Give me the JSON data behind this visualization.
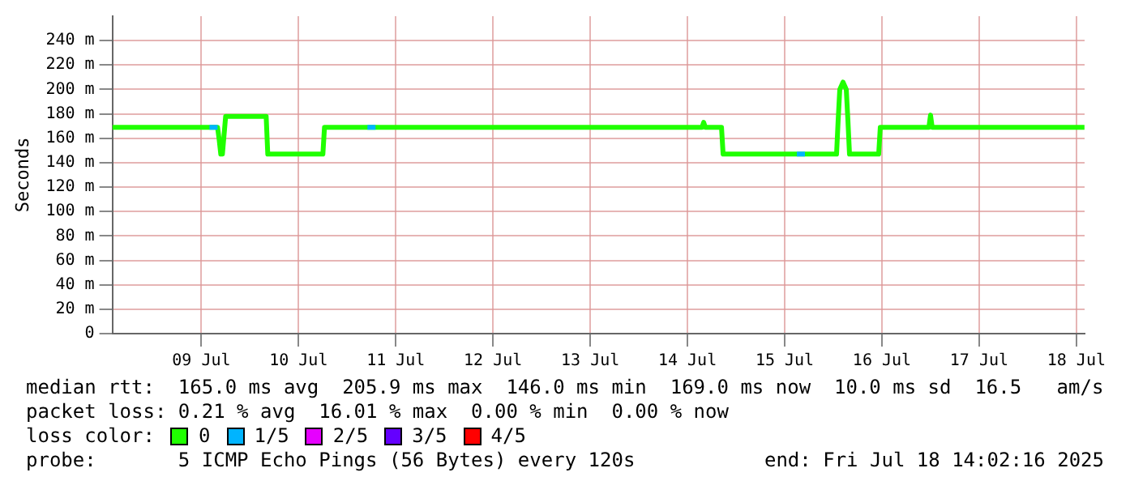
{
  "chart_data": {
    "type": "line",
    "ylabel": "Seconds",
    "xlim": [
      "2025-07-08T14:02",
      "2025-07-18T14:02"
    ],
    "xticks": [
      {
        "value": "2025-07-09T12:00",
        "label": "09 Jul"
      },
      {
        "value": "2025-07-10T12:00",
        "label": "10 Jul"
      },
      {
        "value": "2025-07-11T12:00",
        "label": "11 Jul"
      },
      {
        "value": "2025-07-12T12:00",
        "label": "12 Jul"
      },
      {
        "value": "2025-07-13T12:00",
        "label": "13 Jul"
      },
      {
        "value": "2025-07-14T12:00",
        "label": "14 Jul"
      },
      {
        "value": "2025-07-15T12:00",
        "label": "15 Jul"
      },
      {
        "value": "2025-07-16T12:00",
        "label": "16 Jul"
      },
      {
        "value": "2025-07-17T12:00",
        "label": "17 Jul"
      },
      {
        "value": "2025-07-18T12:00",
        "label": "18 Jul"
      }
    ],
    "ylim": [
      0,
      260
    ],
    "yticks": [
      0,
      {
        "value": 20,
        "label": "20 m"
      },
      {
        "value": 40,
        "label": "40 m"
      },
      {
        "value": 60,
        "label": "60 m"
      },
      {
        "value": 80,
        "label": "80 m"
      },
      {
        "value": 100,
        "label": "100 m"
      },
      {
        "value": 120,
        "label": "120 m"
      },
      {
        "value": 140,
        "label": "140 m"
      },
      {
        "value": 160,
        "label": "160 m"
      },
      {
        "value": 180,
        "label": "180 m"
      },
      {
        "value": 200,
        "label": "200 m"
      },
      {
        "value": 220,
        "label": "220 m"
      },
      {
        "value": 240,
        "label": "240 m"
      }
    ],
    "grid": true,
    "legend": "bottom",
    "legend_title": "loss color:",
    "series": [
      {
        "name": "0",
        "color": "#20ff00",
        "x": [
          "2025-07-08T14:02",
          "2025-07-09T16:00",
          "2025-07-09T16:24",
          "2025-07-09T16:48",
          "2025-07-09T17:12",
          "2025-07-09T18:00",
          "2025-07-10T04:00",
          "2025-07-10T04:24",
          "2025-07-10T18:00",
          "2025-07-10T18:24",
          "2025-07-14T15:36",
          "2025-07-14T16:00",
          "2025-07-14T16:24",
          "2025-07-14T20:24",
          "2025-07-14T20:48",
          "2025-07-16T00:48",
          "2025-07-16T01:12",
          "2025-07-16T01:36",
          "2025-07-16T02:24",
          "2025-07-16T03:12",
          "2025-07-16T03:36",
          "2025-07-16T04:00",
          "2025-07-16T11:12",
          "2025-07-16T11:36",
          "2025-07-16T23:36",
          "2025-07-17T00:00",
          "2025-07-17T00:24",
          "2025-07-18T14:00"
        ],
        "values": [
          169,
          169,
          159,
          147,
          147,
          178,
          178,
          147,
          147,
          169,
          169,
          173,
          169,
          169,
          147,
          147,
          175,
          200,
          206,
          200,
          175,
          147,
          147,
          169,
          169,
          179,
          169,
          169
        ]
      },
      {
        "name": "1/5",
        "color": "#00b4ff",
        "x": [
          "2025-07-09T14:00",
          "2025-07-09T16:00",
          "2025-07-10T12:00",
          "2025-07-11T05:00",
          "2025-07-11T07:00",
          "2025-07-13T00:00",
          "2025-07-15T15:00",
          "2025-07-15T17:00"
        ],
        "values": [
          169,
          169,
          null,
          169,
          169,
          null,
          147,
          147
        ]
      },
      {
        "name": "2/5",
        "color": "#e600ff"
      },
      {
        "name": "3/5",
        "color": "#6400ff"
      },
      {
        "name": "4/5",
        "color": "#ff0000"
      }
    ],
    "annotations": [
      "median rtt:  165.0 ms avg  205.9 ms max  146.0 ms min  169.0 ms now  10.0 ms sd  16.5   am/s",
      "packet loss: 0.21 % avg  16.01 % max  0.00 % min  0.00 % now",
      "probe:       5 ICMP Echo Pings (56 Bytes) every 120s",
      "end: Fri Jul 18 14:02:16 2025"
    ]
  }
}
